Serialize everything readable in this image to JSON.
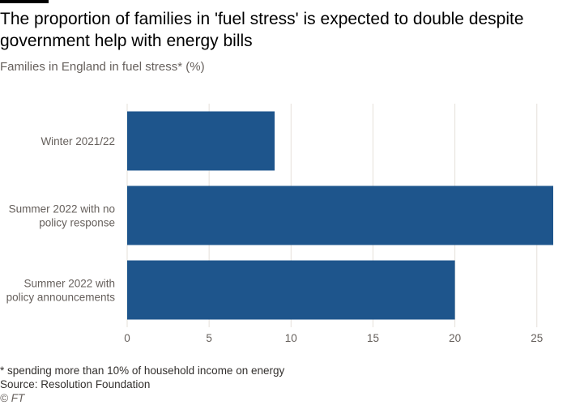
{
  "header": {
    "title": "The proportion of families in 'fuel stress' is expected to double despite government help with energy bills",
    "subtitle": "Families in England in fuel stress* (%)"
  },
  "chart_data": {
    "type": "bar",
    "orientation": "horizontal",
    "title": "The proportion of families in 'fuel stress' is expected to double despite government help with energy bills",
    "subtitle": "Families in England in fuel stress* (%)",
    "categories": [
      [
        "Winter 2021/22"
      ],
      [
        "Summer 2022 with no",
        "policy response"
      ],
      [
        "Summer 2022 with",
        "policy announcements"
      ]
    ],
    "values": [
      9,
      26,
      20
    ],
    "xlim": [
      0,
      26
    ],
    "xticks": [
      "0",
      "5",
      "10",
      "15",
      "20",
      "25"
    ],
    "grid": true,
    "bar_color": "#1e558c",
    "grid_color": "#e6e0da"
  },
  "footer": {
    "note": "* spending more than 10% of household income on energy",
    "source": "Source: Resolution Foundation",
    "credit": "© FT"
  }
}
